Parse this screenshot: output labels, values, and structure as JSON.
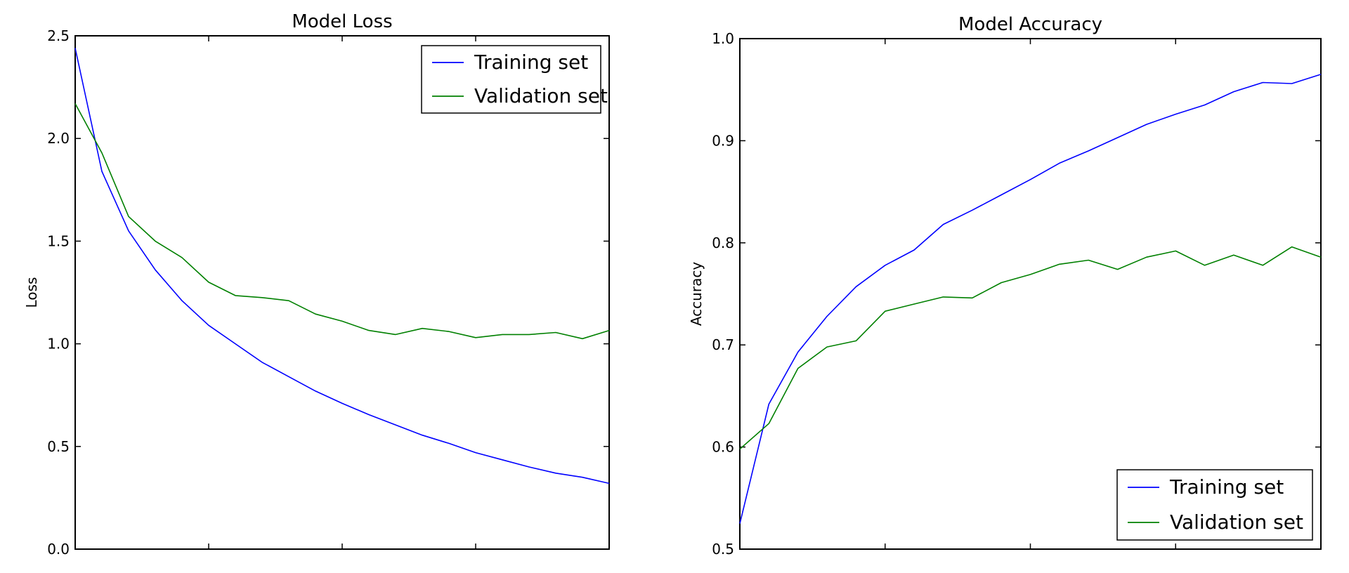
{
  "chart_data": [
    {
      "type": "line",
      "title": "Model Loss",
      "xlabel": "",
      "ylabel": "Loss",
      "ylim": [
        0.0,
        2.5
      ],
      "ytick_labels": [
        "0.0",
        "0.5",
        "1.0",
        "1.5",
        "2.0",
        "2.5"
      ],
      "xlim": [
        0,
        20
      ],
      "legend_position": "top-right",
      "grid": false,
      "series": [
        {
          "name": "Training set",
          "color": "#0000ff",
          "x": [
            0,
            1,
            2,
            3,
            4,
            5,
            6,
            7,
            8,
            9,
            10,
            11,
            12,
            13,
            14,
            15,
            16,
            17,
            18,
            19,
            20
          ],
          "values": [
            2.44,
            1.84,
            1.55,
            1.36,
            1.21,
            1.09,
            1.0,
            0.91,
            0.84,
            0.77,
            0.71,
            0.655,
            0.605,
            0.555,
            0.515,
            0.47,
            0.435,
            0.4,
            0.37,
            0.35,
            0.32
          ]
        },
        {
          "name": "Validation set",
          "color": "#008000",
          "x": [
            0,
            1,
            2,
            3,
            4,
            5,
            6,
            7,
            8,
            9,
            10,
            11,
            12,
            13,
            14,
            15,
            16,
            17,
            18,
            19,
            20
          ],
          "values": [
            2.17,
            1.93,
            1.62,
            1.5,
            1.42,
            1.3,
            1.235,
            1.225,
            1.21,
            1.145,
            1.11,
            1.065,
            1.045,
            1.075,
            1.06,
            1.03,
            1.045,
            1.045,
            1.055,
            1.025,
            1.065
          ]
        }
      ]
    },
    {
      "type": "line",
      "title": "Model Accuracy",
      "xlabel": "",
      "ylabel": "Accuracy",
      "ylim": [
        0.5,
        1.0
      ],
      "ytick_labels": [
        "0.5",
        "0.6",
        "0.7",
        "0.8",
        "0.9",
        "1.0"
      ],
      "xlim": [
        0,
        20
      ],
      "legend_position": "bottom-right",
      "grid": false,
      "series": [
        {
          "name": "Training set",
          "color": "#0000ff",
          "x": [
            0,
            1,
            2,
            3,
            4,
            5,
            6,
            7,
            8,
            9,
            10,
            11,
            12,
            13,
            14,
            15,
            16,
            17,
            18,
            19,
            20
          ],
          "values": [
            0.525,
            0.642,
            0.693,
            0.728,
            0.757,
            0.778,
            0.793,
            0.818,
            0.832,
            0.847,
            0.862,
            0.878,
            0.89,
            0.903,
            0.916,
            0.926,
            0.935,
            0.948,
            0.957,
            0.956,
            0.965
          ]
        },
        {
          "name": "Validation set",
          "color": "#008000",
          "x": [
            0,
            1,
            2,
            3,
            4,
            5,
            6,
            7,
            8,
            9,
            10,
            11,
            12,
            13,
            14,
            15,
            16,
            17,
            18,
            19,
            20
          ],
          "values": [
            0.598,
            0.623,
            0.677,
            0.698,
            0.704,
            0.733,
            0.74,
            0.747,
            0.746,
            0.761,
            0.769,
            0.779,
            0.783,
            0.774,
            0.786,
            0.792,
            0.778,
            0.788,
            0.778,
            0.796,
            0.786
          ]
        }
      ]
    }
  ]
}
